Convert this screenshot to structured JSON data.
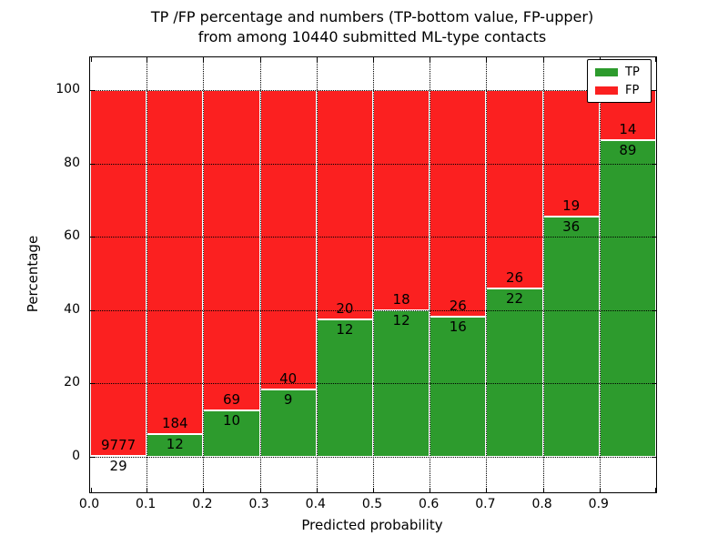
{
  "title": {
    "line1": "TP /FP percentage and numbers (TP-bottom value, FP-upper)",
    "line2": "from among 10440 submitted ML-type contacts"
  },
  "colors": {
    "tp_green": "#2d9b2d",
    "fp_red": "#fb2020",
    "grid": "#000000",
    "background": "#ffffff"
  },
  "chart_data": {
    "type": "bar",
    "subtype": "stacked-percentage-histogram",
    "title": "TP /FP percentage and numbers (TP-bottom value, FP-upper)\nfrom among 10440 submitted ML-type contacts",
    "xlabel": "Predicted probability",
    "ylabel": "Percentage",
    "total_contacts": 10440,
    "bin_edges": [
      0.0,
      0.1,
      0.2,
      0.3,
      0.4,
      0.5,
      0.6,
      0.7,
      0.8,
      0.9,
      1.0
    ],
    "series": [
      {
        "name": "TP",
        "color": "#2d9b2d",
        "counts": [
          29,
          12,
          10,
          9,
          12,
          12,
          16,
          22,
          36,
          89
        ]
      },
      {
        "name": "FP",
        "color": "#fb2020",
        "counts": [
          9777,
          184,
          69,
          40,
          20,
          18,
          26,
          26,
          19,
          14
        ]
      }
    ],
    "tp_percent": [
      0.3,
      6.12,
      12.66,
      18.37,
      37.5,
      40.0,
      38.1,
      45.83,
      65.45,
      86.41
    ],
    "x_tick_labels": [
      "0.0",
      "0.1",
      "0.2",
      "0.3",
      "0.4",
      "0.5",
      "0.6",
      "0.7",
      "0.8",
      "0.9"
    ],
    "y_ticks": [
      0,
      20,
      40,
      60,
      80,
      100
    ],
    "xlim": [
      0.0,
      1.0
    ],
    "ylim": [
      -9.7,
      108.9
    ],
    "grid": "dotted, both axes, drawn over bars",
    "legend": {
      "position": "upper right",
      "entries": [
        {
          "label": "TP",
          "color": "#2d9b2d"
        },
        {
          "label": "FP",
          "color": "#fb2020"
        }
      ]
    }
  }
}
